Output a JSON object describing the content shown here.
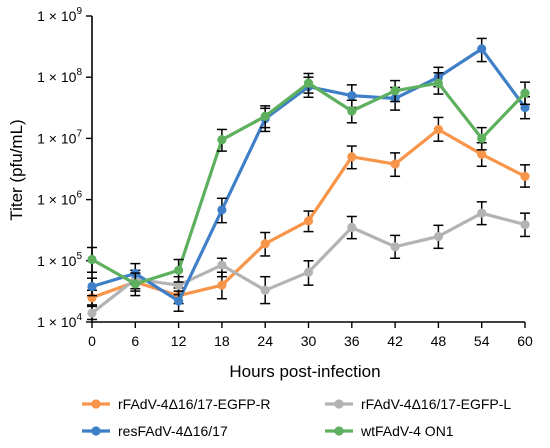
{
  "chart_data": {
    "type": "line",
    "xlabel": "Hours post-infection",
    "ylabel": "Titer (pfu/mL)",
    "yscale": "log",
    "ylim": [
      10000,
      1000000000
    ],
    "xlim": [
      0,
      60
    ],
    "x": [
      0,
      6,
      12,
      18,
      24,
      30,
      36,
      42,
      48,
      54,
      60
    ],
    "x_ticks": [
      "0",
      "6",
      "12",
      "18",
      "24",
      "30",
      "36",
      "42",
      "48",
      "54",
      "60"
    ],
    "y_ticks": [
      {
        "value": 10000,
        "base": "1 × 10",
        "exp": "4"
      },
      {
        "value": 100000,
        "base": "1 × 10",
        "exp": "5"
      },
      {
        "value": 1000000,
        "base": "1 × 10",
        "exp": "6"
      },
      {
        "value": 10000000,
        "base": "1 × 10",
        "exp": "7"
      },
      {
        "value": 100000000,
        "base": "1 × 10",
        "exp": "8"
      },
      {
        "value": 1000000000,
        "base": "1 × 10",
        "exp": "9"
      }
    ],
    "legend_position": "bottom",
    "series": [
      {
        "name": "rFAdV-4Δ16/17-EGFP-R",
        "color": "#f7954a",
        "values": [
          25000,
          45000,
          27000,
          40000,
          190000,
          450000,
          5000000,
          3800000,
          14000000,
          5500000,
          2400000
        ],
        "err_low": [
          19000,
          32000,
          20000,
          24000,
          120000,
          300000,
          3200000,
          2400000,
          9000000,
          3500000,
          1600000
        ],
        "err_high": [
          33000,
          60000,
          36000,
          65000,
          290000,
          650000,
          7500000,
          5800000,
          22000000,
          8500000,
          3700000
        ]
      },
      {
        "name": "rFAdV-4Δ16/17-EGFP-L",
        "color": "#b3b3b3",
        "values": [
          14000,
          50000,
          40000,
          85000,
          33000,
          65000,
          350000,
          170000,
          250000,
          600000,
          390000
        ],
        "err_low": [
          11000,
          35000,
          28000,
          55000,
          20000,
          40000,
          230000,
          110000,
          160000,
          390000,
          250000
        ],
        "err_high": [
          18000,
          70000,
          55000,
          110000,
          55000,
          100000,
          530000,
          260000,
          380000,
          920000,
          600000
        ]
      },
      {
        "name": "resFAdV-4Δ16/17",
        "color": "#3f7fc7",
        "values": [
          38000,
          62000,
          22000,
          680000,
          21000000,
          70000000,
          50000000,
          45000000,
          100000000,
          290000000,
          32000000
        ],
        "err_low": [
          27000,
          42000,
          15000,
          420000,
          13000000,
          47000000,
          32000000,
          29000000,
          70000000,
          180000000,
          21000000
        ],
        "err_high": [
          52000,
          90000,
          32000,
          1050000,
          31000000,
          100000000,
          75000000,
          68000000,
          145000000,
          430000000,
          48000000
        ]
      },
      {
        "name": "wtFAdV-4 ON1",
        "color": "#5eb05e",
        "values": [
          105000,
          42000,
          70000,
          9500000,
          23000000,
          80000000,
          28000000,
          60000000,
          80000000,
          10000000,
          55000000
        ],
        "err_low": [
          65000,
          27000,
          45000,
          6200000,
          15000000,
          55000000,
          18000000,
          40000000,
          53000000,
          6500000,
          36000000
        ],
        "err_high": [
          165000,
          63000,
          105000,
          14000000,
          34000000,
          115000000,
          42000000,
          88000000,
          118000000,
          15000000,
          83000000
        ]
      }
    ]
  }
}
